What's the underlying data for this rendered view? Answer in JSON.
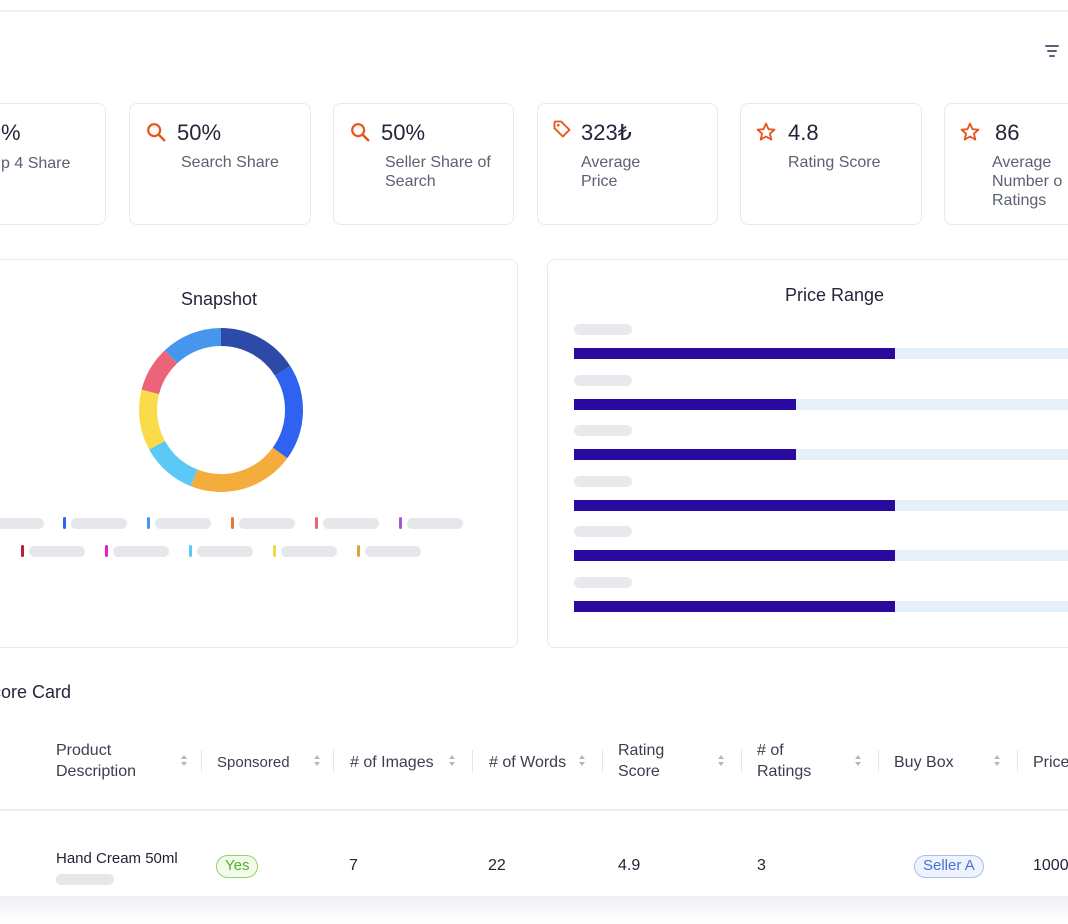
{
  "toolbar": {
    "filter_icon": "filter-icon"
  },
  "kpis": [
    {
      "value": "%",
      "label": "p 4 Share",
      "icon": ""
    },
    {
      "value": "50%",
      "label": "Search Share",
      "icon": "search-icon"
    },
    {
      "value": "50%",
      "label": "Seller Share of\nSearch",
      "icon": "search-icon"
    },
    {
      "value": "323₺",
      "label": "Average\nPrice",
      "icon": "tag-icon"
    },
    {
      "value": "4.8",
      "label": "Rating Score",
      "icon": "star-icon"
    },
    {
      "value": "86",
      "label": "Average\nNumber o\nRatings",
      "icon": "star-icon"
    }
  ],
  "accent_color": "#e8541a",
  "snapshot": {
    "title": "Snapshot",
    "segments": [
      {
        "color": "#2e4aa8",
        "fraction": 0.16
      },
      {
        "color": "#2f62f0",
        "fraction": 0.19
      },
      {
        "color": "#f4ad3c",
        "fraction": 0.21
      },
      {
        "color": "#5bc8f5",
        "fraction": 0.11
      },
      {
        "color": "#fadb4a",
        "fraction": 0.12
      },
      {
        "color": "#ec6478",
        "fraction": 0.09
      },
      {
        "color": "#4696ee",
        "fraction": 0.12
      }
    ],
    "legend_colors": [
      "#2f62f0",
      "#4696ee",
      "#e8763a",
      "#e06a7a",
      "#a259d9",
      "#b0243a",
      "#e21fd3",
      "#5bc8f5",
      "#f0d84a",
      "#d9a53a"
    ]
  },
  "price_range": {
    "title": "Price Range",
    "bars": [
      0.65,
      0.45,
      0.45,
      0.65,
      0.65,
      0.65
    ],
    "bar_color": "#2a0a9e",
    "track_color": "#e6f0fb"
  },
  "scorecard": {
    "title": "core Card",
    "columns": [
      "Product\nDescription",
      "Sponsored",
      "# of Images",
      "# of Words",
      "Rating\nScore",
      "# of\nRatings",
      "Buy Box",
      "Price"
    ],
    "rows": [
      {
        "product": "Hand Cream 50ml",
        "sponsored": "Yes",
        "images": "7",
        "words": "22",
        "rating_score": "4.9",
        "ratings": "3",
        "buy_box": "Seller A",
        "price": "1000"
      }
    ]
  }
}
